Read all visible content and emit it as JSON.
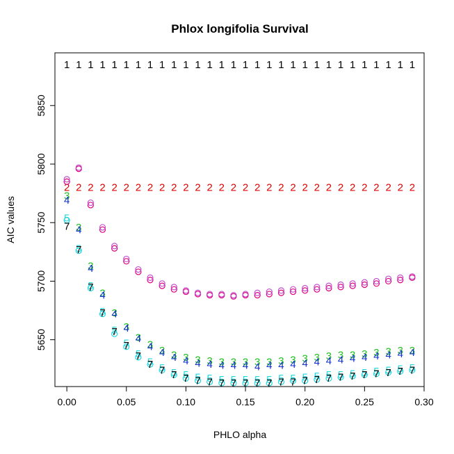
{
  "chart_data": {
    "type": "scatter",
    "title": "Phlox longifolia Survival",
    "xlabel": "PHLO alpha",
    "ylabel": "AIC values",
    "xlim": [
      -0.01,
      0.3
    ],
    "ylim": [
      5610,
      5895
    ],
    "xticks": [
      0.0,
      0.05,
      0.1,
      0.15,
      0.2,
      0.25,
      0.3
    ],
    "xtick_labels": [
      "0.00",
      "0.05",
      "0.10",
      "0.15",
      "0.20",
      "0.25",
      "0.30"
    ],
    "yticks": [
      5650,
      5700,
      5750,
      5800,
      5850
    ],
    "ytick_labels": [
      "5650",
      "5700",
      "5750",
      "5800",
      "5850"
    ],
    "grid": false,
    "x": [
      0.0,
      0.01,
      0.02,
      0.03,
      0.04,
      0.05,
      0.06,
      0.07,
      0.08,
      0.09,
      0.1,
      0.11,
      0.12,
      0.13,
      0.14,
      0.15,
      0.16,
      0.17,
      0.18,
      0.19,
      0.2,
      0.21,
      0.22,
      0.23,
      0.24,
      0.25,
      0.26,
      0.27,
      0.28,
      0.29
    ],
    "series": [
      {
        "symbol": "1",
        "color": "#000000",
        "values": [
          5885,
          5885,
          5885,
          5885,
          5885,
          5885,
          5885,
          5885,
          5885,
          5885,
          5885,
          5885,
          5885,
          5885,
          5885,
          5885,
          5885,
          5885,
          5885,
          5885,
          5885,
          5885,
          5885,
          5885,
          5885,
          5885,
          5885,
          5885,
          5885,
          5885
        ]
      },
      {
        "symbol": "2",
        "color": "#df0000",
        "values": [
          5780,
          5780,
          5780,
          5780,
          5780,
          5780,
          5780,
          5780,
          5780,
          5780,
          5780,
          5780,
          5780,
          5780,
          5780,
          5780,
          5780,
          5780,
          5780,
          5780,
          5780,
          5780,
          5780,
          5780,
          5780,
          5780,
          5780,
          5780,
          5780,
          5780
        ]
      },
      {
        "symbol": "o",
        "color": "#e0007a",
        "values": [
          5785,
          5796,
          5765,
          5744,
          5728,
          5717,
          5708,
          5701,
          5696,
          5693,
          5691,
          5689,
          5688,
          5688,
          5687,
          5688,
          5688,
          5689,
          5690,
          5691,
          5692,
          5693,
          5694,
          5695,
          5696,
          5697,
          5698,
          5700,
          5701,
          5703
        ]
      },
      {
        "symbol": "o",
        "color": "#c04fd0",
        "values": [
          5787,
          5797,
          5767,
          5746,
          5730,
          5719,
          5710,
          5703,
          5698,
          5695,
          5692,
          5690,
          5689,
          5689,
          5688,
          5689,
          5690,
          5691,
          5692,
          5693,
          5694,
          5695,
          5696,
          5697,
          5698,
          5699,
          5700,
          5702,
          5703,
          5704
        ]
      },
      {
        "symbol": "3",
        "color": "#22c022",
        "values": [
          5773,
          5746,
          5713,
          5690,
          5673,
          5661,
          5652,
          5646,
          5641,
          5637,
          5635,
          5633,
          5632,
          5631,
          5631,
          5631,
          5631,
          5631,
          5632,
          5633,
          5634,
          5635,
          5636,
          5637,
          5637,
          5638,
          5639,
          5640,
          5641,
          5641
        ]
      },
      {
        "symbol": "4",
        "color": "#1030d0",
        "values": [
          5769,
          5744,
          5711,
          5688,
          5672,
          5660,
          5651,
          5644,
          5639,
          5635,
          5632,
          5630,
          5629,
          5628,
          5628,
          5628,
          5627,
          5628,
          5628,
          5629,
          5630,
          5631,
          5632,
          5633,
          5634,
          5635,
          5636,
          5637,
          5638,
          5639
        ]
      },
      {
        "symbol": "5",
        "color": "#22d8e0",
        "values": [
          5754,
          5728,
          5696,
          5674,
          5658,
          5647,
          5638,
          5631,
          5626,
          5622,
          5620,
          5618,
          5617,
          5616,
          5616,
          5616,
          5616,
          5616,
          5617,
          5617,
          5618,
          5619,
          5620,
          5620,
          5621,
          5622,
          5623,
          5624,
          5625,
          5626
        ]
      },
      {
        "symbol": "o",
        "color": "#22d8e0",
        "values": [
          5752,
          5726,
          5694,
          5672,
          5655,
          5644,
          5635,
          5629,
          5624,
          5620,
          5617,
          5615,
          5614,
          5613,
          5613,
          5613,
          5613,
          5613,
          5614,
          5615,
          5615,
          5616,
          5617,
          5618,
          5619,
          5620,
          5621,
          5622,
          5623,
          5624
        ]
      },
      {
        "symbol": "7",
        "color": "#000000",
        "values": [
          5747,
          5727,
          5695,
          5673,
          5657,
          5645,
          5636,
          5629,
          5624,
          5620,
          5617,
          5615,
          5614,
          5613,
          5613,
          5613,
          5613,
          5613,
          5614,
          5614,
          5615,
          5616,
          5617,
          5618,
          5619,
          5620,
          5621,
          5622,
          5623,
          5624
        ]
      }
    ]
  }
}
